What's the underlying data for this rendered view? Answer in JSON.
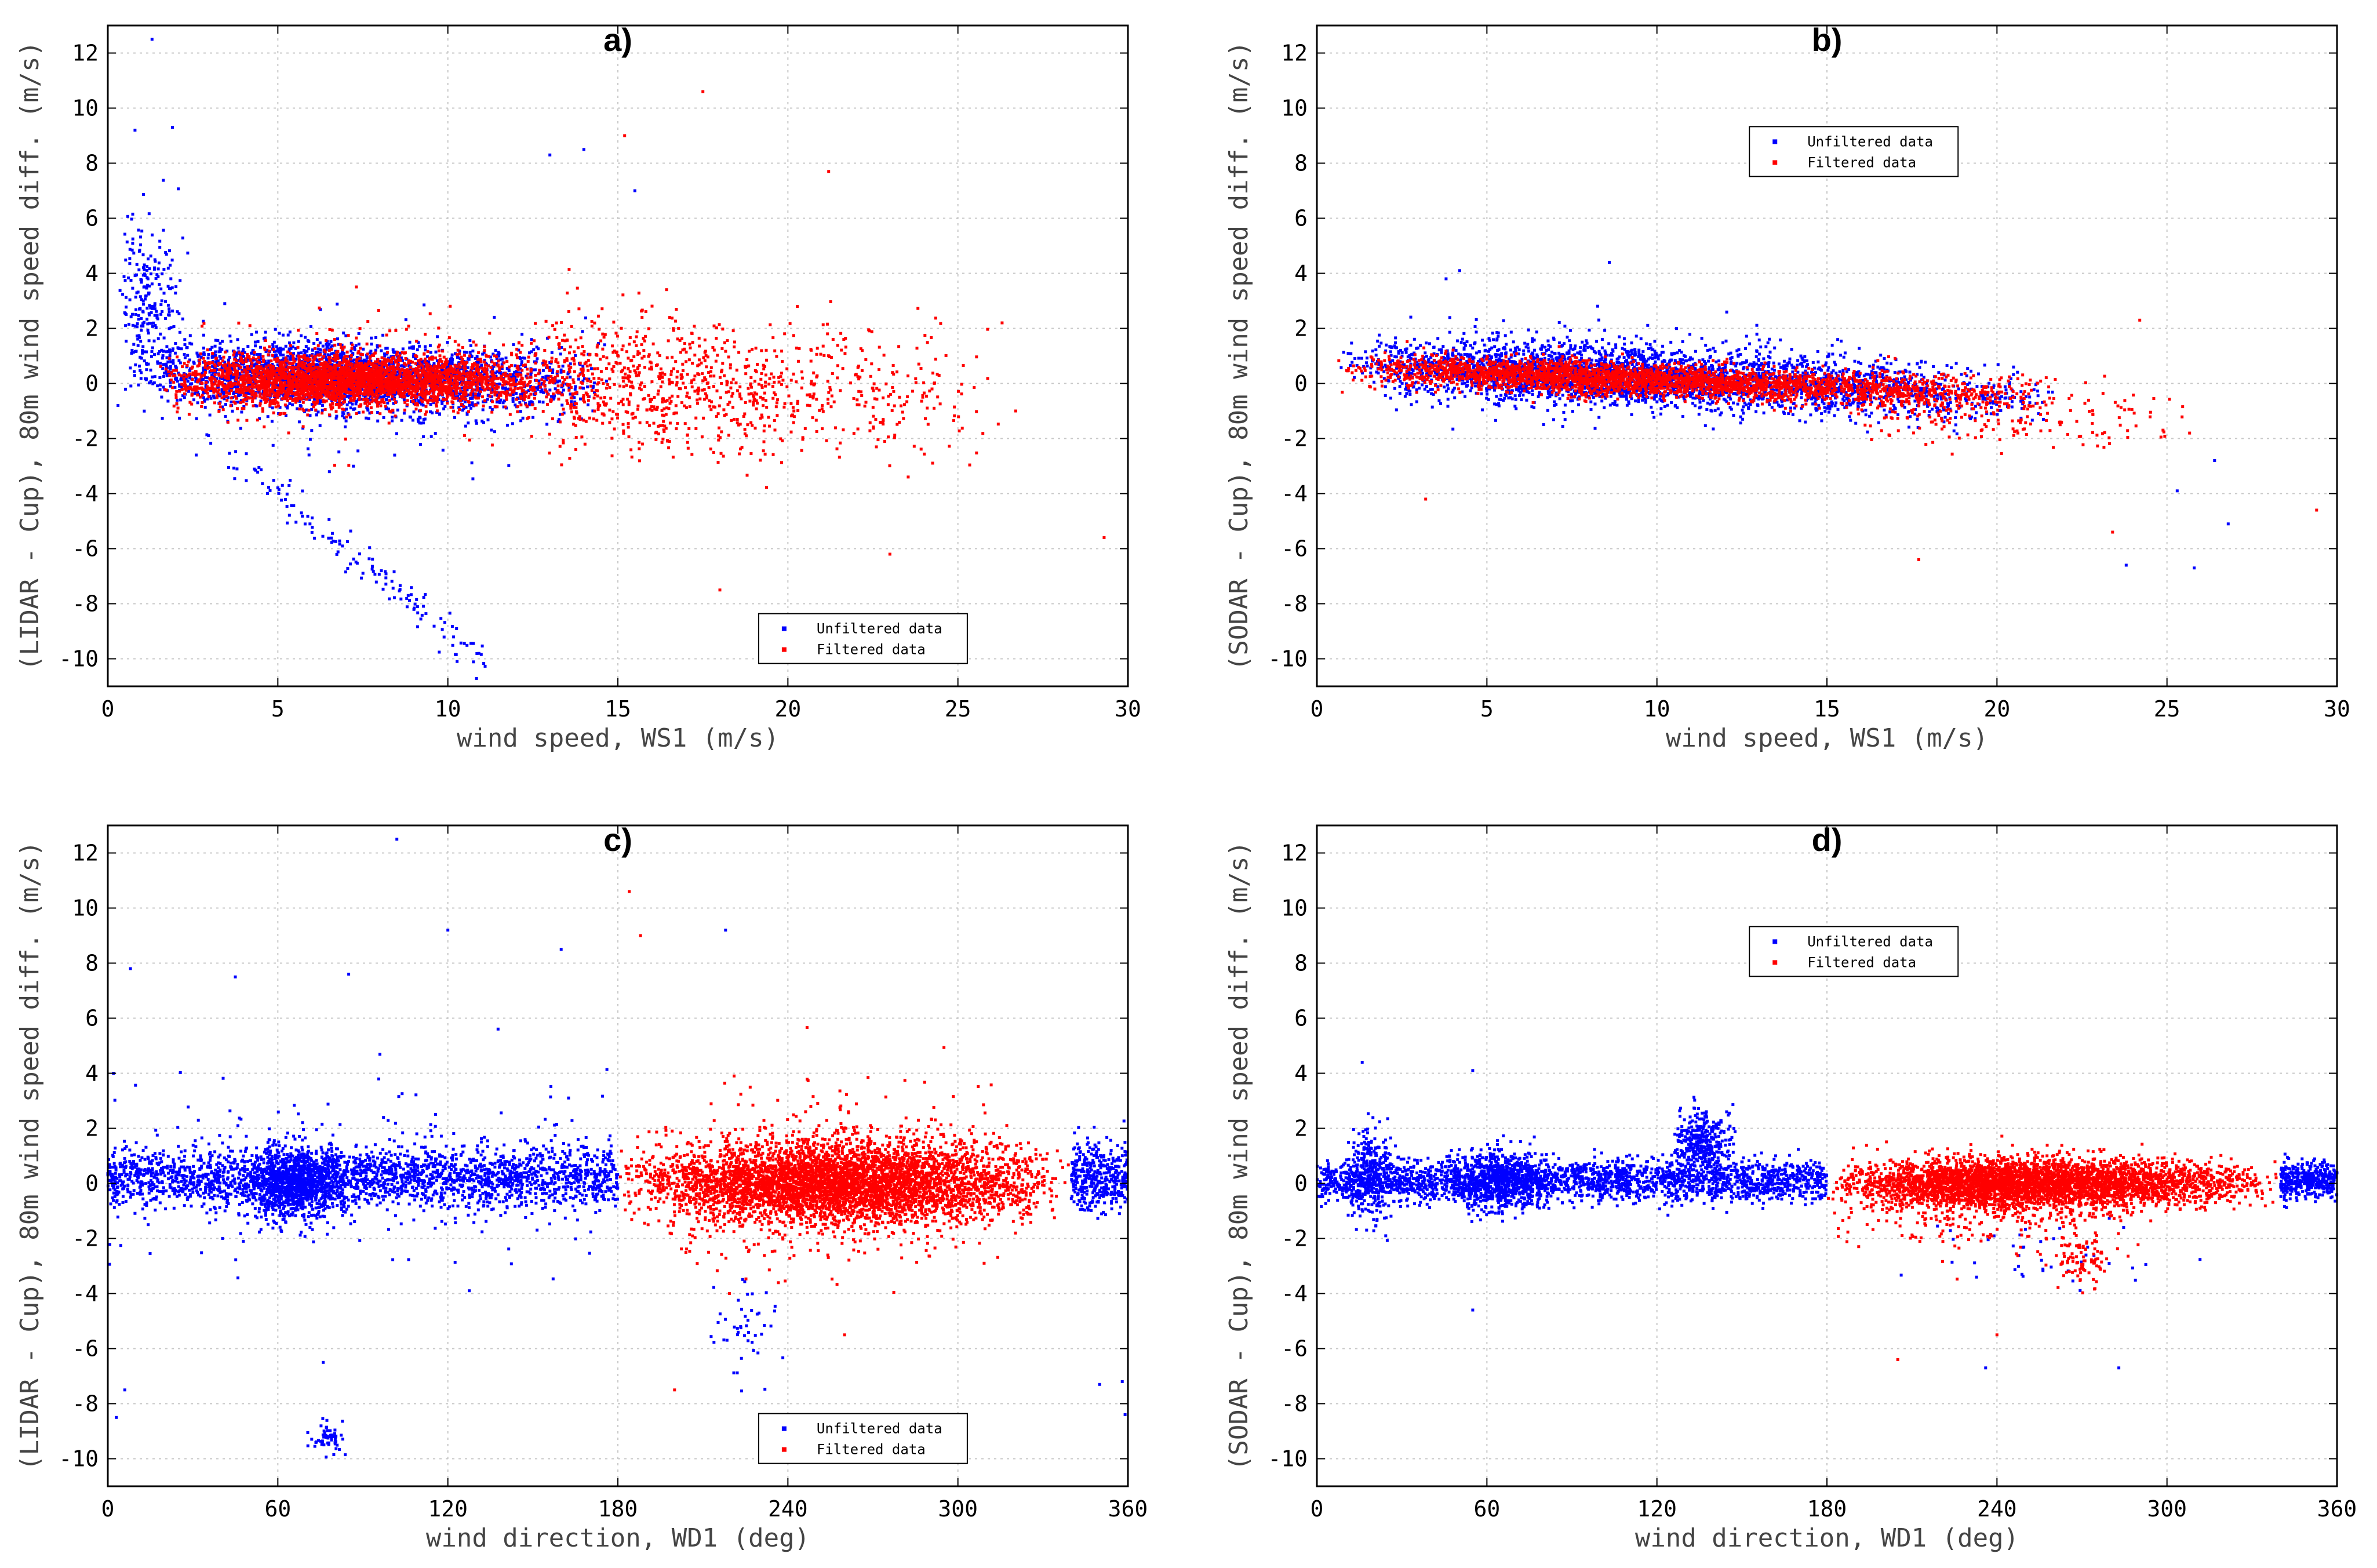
{
  "figure": {
    "background": "#ffffff"
  },
  "colors": {
    "unfiltered": "#0000ff",
    "filtered": "#ff0000",
    "grid": "#c8c8c8",
    "axis": "#000000"
  },
  "chart_data": [
    {
      "type": "scatter",
      "panel_label": "a)",
      "xlabel": "wind speed, WS1 (m/s)",
      "ylabel": "(LIDAR - Cup), 80m wind speed diff. (m/s)",
      "xlim": [
        0,
        30
      ],
      "ylim": [
        -11,
        13
      ],
      "xticks": [
        0,
        5,
        10,
        15,
        20,
        25,
        30
      ],
      "yticks": [
        -10,
        -8,
        -6,
        -4,
        -2,
        0,
        2,
        4,
        6,
        8,
        10,
        12
      ],
      "grid": true,
      "legend": {
        "position": "bottom-right",
        "entries": [
          "Unfiltered data",
          "Filtered data"
        ]
      },
      "series": [
        {
          "name": "Unfiltered data",
          "color": "#0000ff",
          "clusters": [
            {
              "x_range": [
                0.5,
                15
              ],
              "x_mode": 6,
              "y_center": 0.2,
              "y_spread": 1.0,
              "count": 2600,
              "slope": -0.03
            },
            {
              "x_range": [
                0.3,
                2.5
              ],
              "x_mode": 1.0,
              "y_center": 3.0,
              "y_spread": 2.2,
              "count": 220
            },
            {
              "x_range": [
                3,
                15
              ],
              "x_mode": 6,
              "y_center": 0.0,
              "y_spread": 2.2,
              "count": 150
            }
          ],
          "lines": [
            {
              "x": [
                3.0,
                11.2
              ],
              "y": [
                -2.0,
                -10.3
              ],
              "count": 140,
              "jitter": 0.35
            }
          ],
          "points": [
            [
              1.3,
              12.5
            ],
            [
              0.8,
              9.2
            ],
            [
              1.9,
              9.3
            ],
            [
              13.0,
              8.3
            ],
            [
              14.0,
              8.5
            ],
            [
              15.5,
              7.0
            ],
            [
              0.3,
              -0.8
            ],
            [
              2.6,
              -2.6
            ]
          ]
        },
        {
          "name": "Filtered data",
          "color": "#ff0000",
          "clusters": [
            {
              "x_range": [
                1.5,
                13.5
              ],
              "x_mode": 7,
              "y_center": 0.1,
              "y_spread": 0.75,
              "count": 3000
            },
            {
              "x_range": [
                12,
                26.5
              ],
              "x_mode": 14,
              "y_center": -0.3,
              "y_spread": 1.9,
              "count": 1000,
              "slope": -0.06
            },
            {
              "x_range": [
                2,
                14
              ],
              "x_mode": 7,
              "y_center": 0.3,
              "y_spread": 1.7,
              "count": 220
            }
          ],
          "points": [
            [
              17.5,
              10.6
            ],
            [
              15.2,
              9.0
            ],
            [
              18.0,
              -7.5
            ],
            [
              23.0,
              -6.2
            ],
            [
              29.3,
              -5.6
            ],
            [
              26.7,
              -1.0
            ],
            [
              26.3,
              2.2
            ],
            [
              21.2,
              7.7
            ]
          ]
        }
      ]
    },
    {
      "type": "scatter",
      "panel_label": "b)",
      "xlabel": "wind speed, WS1 (m/s)",
      "ylabel": "(SODAR - Cup), 80m wind speed diff. (m/s)",
      "xlim": [
        0,
        30
      ],
      "ylim": [
        -11,
        13
      ],
      "xticks": [
        0,
        5,
        10,
        15,
        20,
        25,
        30
      ],
      "yticks": [
        -10,
        -8,
        -6,
        -4,
        -2,
        0,
        2,
        4,
        6,
        8,
        10,
        12
      ],
      "grid": true,
      "legend": {
        "position": "top-center",
        "entries": [
          "Unfiltered data",
          "Filtered data"
        ]
      },
      "series": [
        {
          "name": "Unfiltered data",
          "color": "#0000ff",
          "clusters": [
            {
              "x_range": [
                0.5,
                22
              ],
              "x_mode": 7,
              "y_center": 0.1,
              "y_spread": 0.85,
              "count": 3300,
              "slope": -0.06
            },
            {
              "x_range": [
                2,
                17
              ],
              "x_mode": 6,
              "y_center": 0.6,
              "y_spread": 1.4,
              "count": 220
            }
          ],
          "points": [
            [
              3.8,
              3.8
            ],
            [
              4.2,
              4.1
            ],
            [
              8.6,
              4.4
            ],
            [
              23.8,
              -6.6
            ],
            [
              25.8,
              -6.7
            ],
            [
              26.8,
              -5.1
            ],
            [
              25.3,
              -3.9
            ],
            [
              26.4,
              -2.8
            ]
          ]
        },
        {
          "name": "Filtered data",
          "color": "#ff0000",
          "clusters": [
            {
              "x_range": [
                0.5,
                22
              ],
              "x_mode": 7,
              "y_center": 0.05,
              "y_spread": 0.5,
              "count": 2900,
              "slope": -0.05
            },
            {
              "x_range": [
                15,
                26
              ],
              "x_mode": 18,
              "y_center": -1.0,
              "y_spread": 1.1,
              "count": 260,
              "slope": -0.1
            }
          ],
          "points": [
            [
              29.4,
              -4.6
            ],
            [
              23.4,
              -5.4
            ],
            [
              17.7,
              -6.4
            ],
            [
              24.2,
              2.3
            ],
            [
              3.2,
              -4.2
            ]
          ]
        }
      ]
    },
    {
      "type": "scatter",
      "panel_label": "c)",
      "xlabel": "wind direction, WD1 (deg)",
      "ylabel": "(LIDAR - Cup), 80m wind speed diff. (m/s)",
      "xlim": [
        0,
        360
      ],
      "ylim": [
        -11,
        13
      ],
      "xticks": [
        0,
        60,
        120,
        180,
        240,
        300,
        360
      ],
      "yticks": [
        -10,
        -8,
        -6,
        -4,
        -2,
        0,
        2,
        4,
        6,
        8,
        10,
        12
      ],
      "grid": true,
      "legend": {
        "position": "bottom-right",
        "entries": [
          "Unfiltered data",
          "Filtered data"
        ]
      },
      "series": [
        {
          "name": "Unfiltered data",
          "color": "#0000ff",
          "clusters": [
            {
              "x_range": [
                0,
                180
              ],
              "y_center": 0.2,
              "y_spread": 0.9,
              "count": 2200
            },
            {
              "x_range": [
                45,
                85
              ],
              "x_mode": 68,
              "y_center": 0.0,
              "y_spread": 1.1,
              "count": 1000
            },
            {
              "x_range": [
                0,
                180
              ],
              "y_center": 0.3,
              "y_spread": 2.6,
              "count": 260
            },
            {
              "x_range": [
                340,
                360
              ],
              "y_center": 0.2,
              "y_spread": 1.1,
              "count": 380
            },
            {
              "x_range": [
                210,
                240
              ],
              "x_mode": 225,
              "y_center": -5.0,
              "y_spread": 1.5,
              "count": 45
            },
            {
              "x_range": [
                70,
                85
              ],
              "x_mode": 77,
              "y_center": -9.3,
              "y_spread": 0.5,
              "count": 55
            }
          ],
          "points": [
            [
              102,
              12.5
            ],
            [
              120,
              9.2
            ],
            [
              218,
              9.2
            ],
            [
              3,
              -8.5
            ],
            [
              359,
              -8.4
            ],
            [
              358,
              -7.2
            ],
            [
              350,
              -7.3
            ],
            [
              6,
              -7.5
            ],
            [
              76,
              -6.5
            ],
            [
              2,
              4.0
            ],
            [
              8,
              7.8
            ],
            [
              45,
              7.5
            ],
            [
              85,
              7.6
            ],
            [
              160,
              8.5
            ]
          ]
        },
        {
          "name": "Filtered data",
          "color": "#ff0000",
          "clusters": [
            {
              "x_range": [
                180,
                340
              ],
              "x_mode": 255,
              "y_center": 0.0,
              "y_spread": 1.2,
              "count": 4500
            },
            {
              "x_range": [
                180,
                340
              ],
              "x_mode": 240,
              "y_center": 0.0,
              "y_spread": 2.5,
              "count": 500
            }
          ],
          "points": [
            [
              184,
              10.6
            ],
            [
              188,
              9.0
            ],
            [
              200,
              -7.5
            ],
            [
              260,
              -5.5
            ]
          ]
        }
      ]
    },
    {
      "type": "scatter",
      "panel_label": "d)",
      "xlabel": "wind direction, WD1 (deg)",
      "ylabel": "(SODAR - Cup), 80m wind speed diff. (m/s)",
      "xlim": [
        0,
        360
      ],
      "ylim": [
        -11,
        13
      ],
      "xticks": [
        0,
        60,
        120,
        180,
        240,
        300,
        360
      ],
      "yticks": [
        -10,
        -8,
        -6,
        -4,
        -2,
        0,
        2,
        4,
        6,
        8,
        10,
        12
      ],
      "grid": true,
      "legend": {
        "position": "top-center",
        "entries": [
          "Unfiltered data",
          "Filtered data"
        ]
      },
      "series": [
        {
          "name": "Unfiltered data",
          "color": "#0000ff",
          "clusters": [
            {
              "x_range": [
                0,
                180
              ],
              "y_center": 0.1,
              "y_spread": 0.65,
              "count": 2300
            },
            {
              "x_range": [
                45,
                85
              ],
              "x_mode": 65,
              "y_center": 0.1,
              "y_spread": 0.9,
              "count": 700
            },
            {
              "x_range": [
                125,
                148
              ],
              "x_mode": 136,
              "y_center": 1.5,
              "y_spread": 1.0,
              "count": 350
            },
            {
              "x_range": [
                10,
                28
              ],
              "x_mode": 18,
              "y_center": 0.4,
              "y_spread": 1.4,
              "count": 300
            },
            {
              "x_range": [
                340,
                360
              ],
              "y_center": 0.1,
              "y_spread": 0.55,
              "count": 380
            },
            {
              "x_range": [
                200,
                320
              ],
              "x_mode": 250,
              "y_center": -2.5,
              "y_spread": 1.3,
              "count": 40
            }
          ],
          "points": [
            [
              16,
              4.4
            ],
            [
              55,
              -4.6
            ],
            [
              55,
              4.1
            ],
            [
              236,
              -6.7
            ],
            [
              283,
              -6.7
            ]
          ]
        },
        {
          "name": "Filtered data",
          "color": "#ff0000",
          "clusters": [
            {
              "x_range": [
                180,
                340
              ],
              "x_mode": 240,
              "y_center": 0.0,
              "y_spread": 0.7,
              "count": 3800
            },
            {
              "x_range": [
                180,
                300
              ],
              "x_mode": 240,
              "y_center": -0.6,
              "y_spread": 1.4,
              "count": 500
            },
            {
              "x_range": [
                260,
                280
              ],
              "x_mode": 268,
              "y_center": -2.8,
              "y_spread": 0.8,
              "count": 90
            }
          ],
          "points": [
            [
              240,
              -5.5
            ],
            [
              205,
              -6.4
            ]
          ]
        }
      ]
    }
  ]
}
